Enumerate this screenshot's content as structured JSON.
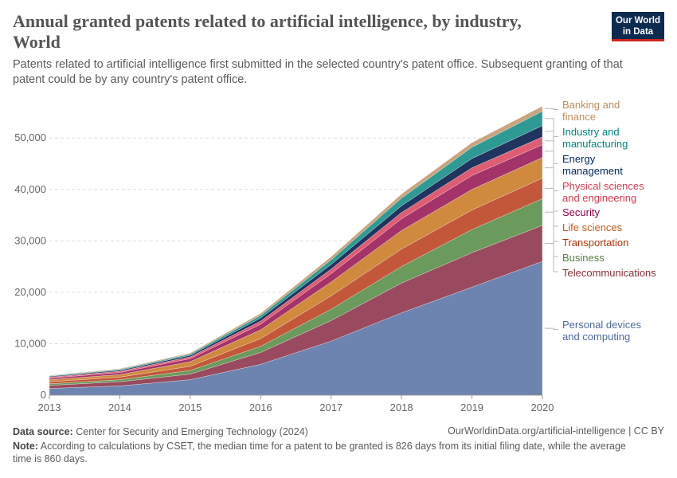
{
  "header": {
    "title": "Annual granted patents related to artificial intelligence, by industry, World",
    "subtitle": "Patents related to artificial intelligence first submitted in the selected country's patent office. Subsequent granting of that patent could be by any country's patent office.",
    "logo_line1": "Our World",
    "logo_line2": "in Data"
  },
  "footer": {
    "source_label": "Data source:",
    "source_text": "Center for Security and Emerging Technology (2024)",
    "credit": "OurWorldinData.org/artificial-intelligence | CC BY",
    "note_label": "Note:",
    "note_text": "According to calculations by CSET, the median time for a patent to be granted is 826 days from its initial filing date, while the average time is 860 days."
  },
  "chart_data": {
    "type": "area",
    "stacked": true,
    "x": [
      2013,
      2014,
      2015,
      2016,
      2017,
      2018,
      2019,
      2020
    ],
    "ylim": [
      0,
      57000
    ],
    "yticks": [
      0,
      10000,
      20000,
      30000,
      40000,
      50000
    ],
    "ytick_labels": [
      "0",
      "10,000",
      "20,000",
      "30,000",
      "40,000",
      "50,000"
    ],
    "xtick_labels": [
      "2013",
      "2014",
      "2015",
      "2016",
      "2017",
      "2018",
      "2019",
      "2020"
    ],
    "grid": true,
    "legend_position": "right",
    "series": [
      {
        "name": "Personal devices and computing",
        "label_lines": [
          "Personal devices",
          "and computing"
        ],
        "color": "#6d84b0",
        "text_color": "#4c6a9c",
        "values": [
          1300,
          1800,
          3000,
          6000,
          10500,
          16000,
          21000,
          26000
        ]
      },
      {
        "name": "Telecommunications",
        "label_lines": [
          "Telecommunications"
        ],
        "color": "#9a4a5e",
        "text_color": "#883039",
        "values": [
          600,
          800,
          1100,
          2300,
          4000,
          5800,
          6700,
          7000
        ]
      },
      {
        "name": "Business",
        "label_lines": [
          "Business"
        ],
        "color": "#6a9a5c",
        "text_color": "#578145",
        "values": [
          300,
          400,
          700,
          1200,
          2200,
          3200,
          4500,
          5200
        ]
      },
      {
        "name": "Transportation",
        "label_lines": [
          "Transportation"
        ],
        "color": "#c2573a",
        "text_color": "#b13507",
        "values": [
          400,
          500,
          800,
          1500,
          2600,
          3400,
          3800,
          4000
        ]
      },
      {
        "name": "Life sciences",
        "label_lines": [
          "Life sciences"
        ],
        "color": "#cf8a3e",
        "text_color": "#c15e18",
        "values": [
          400,
          500,
          900,
          1700,
          2700,
          3600,
          4000,
          4000
        ]
      },
      {
        "name": "Security",
        "label_lines": [
          "Security"
        ],
        "color": "#a4336a",
        "text_color": "#970046",
        "values": [
          300,
          400,
          600,
          1100,
          1600,
          2300,
          2700,
          2500
        ]
      },
      {
        "name": "Physical sciences and engineering",
        "label_lines": [
          "Physical sciences",
          "and engineering"
        ],
        "color": "#df5d73",
        "text_color": "#d73c50",
        "values": [
          200,
          250,
          350,
          600,
          900,
          1200,
          1500,
          1500
        ]
      },
      {
        "name": "Energy management",
        "label_lines": [
          "Energy",
          "management"
        ],
        "color": "#1f3560",
        "text_color": "#00295b",
        "values": [
          150,
          200,
          300,
          600,
          900,
          1300,
          1800,
          2200
        ]
      },
      {
        "name": "Industry and manufacturing",
        "label_lines": [
          "Industry and",
          "manufacturing"
        ],
        "color": "#2e9a93",
        "text_color": "#00847e",
        "values": [
          100,
          150,
          250,
          500,
          900,
          1500,
          2200,
          2800
        ]
      },
      {
        "name": "Banking and finance",
        "label_lines": [
          "Banking and",
          "finance"
        ],
        "color": "#c9a47e",
        "text_color": "#bc8e5a",
        "values": [
          100,
          150,
          200,
          400,
          600,
          800,
          900,
          1000
        ]
      }
    ]
  }
}
